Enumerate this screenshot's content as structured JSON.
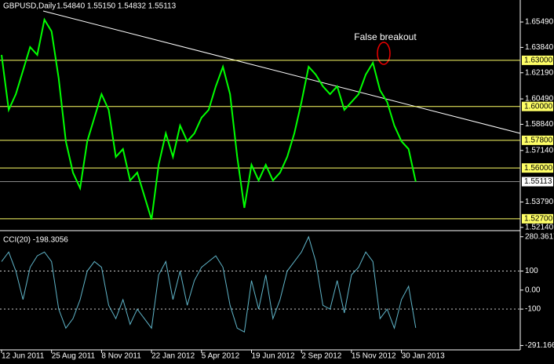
{
  "chart_data": [
    {
      "type": "line",
      "title": "GBPUSD,Daily",
      "ohlc": "1.54840 1.55150 1.54832 1.55113",
      "annotation": "False breakout",
      "color": "#00ff00",
      "values": [
        1.6335,
        1.5978,
        1.608,
        1.6233,
        1.6386,
        1.6335,
        1.6564,
        1.6488,
        1.6182,
        1.5774,
        1.557,
        1.5469,
        1.5774,
        1.5927,
        1.608,
        1.5978,
        1.5672,
        1.5723,
        1.5519,
        1.557,
        1.5418,
        1.5265,
        1.5621,
        1.5825,
        1.5672,
        1.5876,
        1.5774,
        1.5825,
        1.5927,
        1.5978,
        1.6131,
        1.6258,
        1.608,
        1.5672,
        1.5341,
        1.5621,
        1.5519,
        1.5621,
        1.5519,
        1.557,
        1.5672,
        1.5825,
        1.6029,
        1.6258,
        1.6207,
        1.6131,
        1.608,
        1.6131,
        1.5978,
        1.6029,
        1.608,
        1.6207,
        1.6284,
        1.6105,
        1.6029,
        1.5876,
        1.5774,
        1.5723,
        1.55113
      ],
      "ylim": [
        1.5203,
        1.6692
      ],
      "yticks": [
        {
          "value": 1.6549,
          "label": "1.65490"
        },
        {
          "value": 1.6384,
          "label": "1.63840"
        },
        {
          "value": 1.6219,
          "label": "1.62190"
        },
        {
          "value": 1.6049,
          "label": "1.60490"
        },
        {
          "value": 1.5884,
          "label": "1.58840"
        },
        {
          "value": 1.5714,
          "label": "1.57140"
        },
        {
          "value": 1.5379,
          "label": "1.53790"
        },
        {
          "value": 1.5214,
          "label": "1.52140"
        }
      ],
      "levels": [
        {
          "value": 1.63,
          "label": "1.63000"
        },
        {
          "value": 1.6,
          "label": "1.60000"
        },
        {
          "value": 1.578,
          "label": "1.57800"
        },
        {
          "value": 1.56,
          "label": "1.56000"
        },
        {
          "value": 1.527,
          "label": "1.52700"
        }
      ],
      "level_color": "#ffff66",
      "last_price": 1.55113
    },
    {
      "type": "line",
      "title": "CCI(20) -198.3056",
      "color": "#5fb4c8",
      "categories": [
        "12 Jun 2011",
        null,
        null,
        null,
        null,
        null,
        null,
        "25 Aug 2011",
        null,
        null,
        null,
        null,
        null,
        null,
        "8 Nov 2011",
        null,
        null,
        null,
        null,
        null,
        null,
        "22 Jan 2012",
        null,
        null,
        null,
        null,
        null,
        null,
        "5 Apr 2012",
        null,
        null,
        null,
        null,
        null,
        null,
        "19 Jun 2012",
        null,
        null,
        null,
        null,
        null,
        null,
        "2 Sep 2012",
        null,
        null,
        null,
        null,
        null,
        null,
        "15 Nov 2012",
        null,
        null,
        null,
        null,
        null,
        null,
        "30 Jan 2013",
        null,
        null
      ],
      "values": [
        150,
        200,
        100,
        -50,
        120,
        180,
        200,
        150,
        -100,
        -200,
        -150,
        -50,
        100,
        150,
        120,
        -80,
        -150,
        -50,
        -180,
        -100,
        -150,
        -200,
        80,
        150,
        -50,
        100,
        -80,
        50,
        120,
        150,
        180,
        120,
        -80,
        -200,
        -220,
        50,
        -100,
        80,
        -150,
        -50,
        100,
        150,
        200,
        280,
        150,
        -80,
        -100,
        50,
        -120,
        80,
        120,
        200,
        150,
        -150,
        -100,
        -200,
        -50,
        20,
        -198.3056
      ],
      "ylim": [
        -310,
        300
      ],
      "yticks": [
        280.3617,
        100,
        {
          "value": 0,
          "label": "0.00"
        },
        -100,
        -291.1664
      ],
      "dashed": [
        100,
        -100
      ]
    }
  ]
}
